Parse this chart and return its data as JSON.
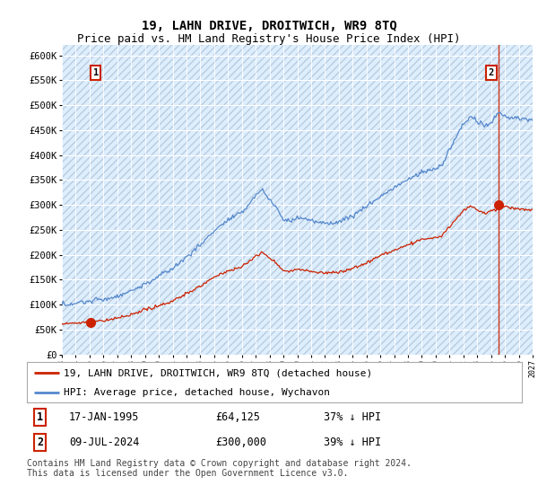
{
  "title": "19, LAHN DRIVE, DROITWICH, WR9 8TQ",
  "subtitle": "Price paid vs. HM Land Registry's House Price Index (HPI)",
  "ylim": [
    0,
    620000
  ],
  "yticks": [
    0,
    50000,
    100000,
    150000,
    200000,
    250000,
    300000,
    350000,
    400000,
    450000,
    500000,
    550000,
    600000
  ],
  "ytick_labels": [
    "£0",
    "£50K",
    "£100K",
    "£150K",
    "£200K",
    "£250K",
    "£300K",
    "£350K",
    "£400K",
    "£450K",
    "£500K",
    "£550K",
    "£600K"
  ],
  "hpi_color": "#5588cc",
  "price_color": "#cc2200",
  "bg_color": "#ddeeff",
  "hatch_color": "#bbccdd",
  "grid_color": "#aabbcc",
  "vline_color": "#cc2200",
  "sale1_date": 1995.04,
  "sale1_price": 64125,
  "sale2_date": 2024.52,
  "sale2_price": 300000,
  "xmin": 1993,
  "xmax": 2027,
  "legend_property": "19, LAHN DRIVE, DROITWICH, WR9 8TQ (detached house)",
  "legend_hpi": "HPI: Average price, detached house, Wychavon",
  "table_row1": [
    "1",
    "17-JAN-1995",
    "£64,125",
    "37% ↓ HPI"
  ],
  "table_row2": [
    "2",
    "09-JUL-2024",
    "£300,000",
    "39% ↓ HPI"
  ],
  "footer": "Contains HM Land Registry data © Crown copyright and database right 2024.\nThis data is licensed under the Open Government Licence v3.0.",
  "title_fontsize": 10,
  "subtitle_fontsize": 9,
  "tick_fontsize": 7.5,
  "legend_fontsize": 8,
  "footer_fontsize": 7
}
